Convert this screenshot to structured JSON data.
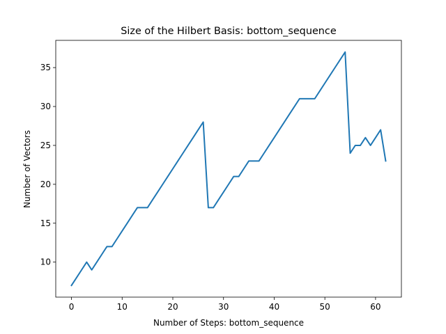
{
  "chart_data": {
    "type": "line",
    "title": "Size of the Hilbert Basis: bottom_sequence",
    "xlabel": "Number of Steps: bottom_sequence",
    "ylabel": "Number of Vectors",
    "xlim": [
      -3.1,
      65.1
    ],
    "ylim": [
      5.5,
      38.5
    ],
    "xticks": [
      0,
      10,
      20,
      30,
      40,
      50,
      60
    ],
    "yticks": [
      10,
      15,
      20,
      25,
      30,
      35
    ],
    "grid": false,
    "color": "#1f77b4",
    "series": [
      {
        "x": [
          0,
          1,
          2,
          3,
          4,
          5,
          6,
          7,
          8,
          9,
          10,
          11,
          12,
          13,
          14,
          15,
          16,
          17,
          18,
          19,
          20,
          21,
          22,
          23,
          24,
          25,
          26,
          27,
          28,
          29,
          30,
          31,
          32,
          33,
          34,
          35,
          36,
          37,
          38,
          39,
          40,
          41,
          42,
          43,
          44,
          45,
          46,
          47,
          48,
          49,
          50,
          51,
          52,
          53,
          54,
          55,
          56,
          57,
          58,
          59,
          60,
          61,
          62
        ],
        "values": [
          7,
          8,
          9,
          10,
          9,
          10,
          11,
          12,
          12,
          13,
          14,
          15,
          16,
          17,
          17,
          17,
          18,
          19,
          20,
          21,
          22,
          23,
          24,
          25,
          26,
          27,
          28,
          17,
          17,
          18,
          19,
          20,
          21,
          21,
          22,
          23,
          23,
          23,
          24,
          25,
          26,
          27,
          28,
          29,
          30,
          31,
          31,
          31,
          31,
          32,
          33,
          34,
          35,
          36,
          37,
          24,
          25,
          25,
          26,
          25,
          26,
          27,
          23
        ]
      }
    ]
  }
}
